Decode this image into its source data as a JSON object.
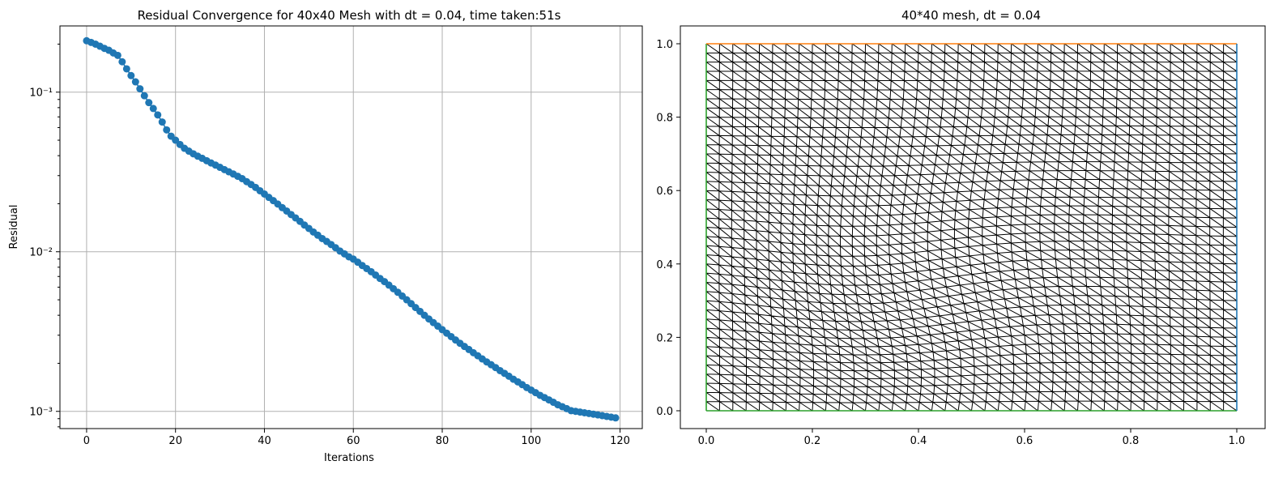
{
  "colors": {
    "series": "#1f77b4",
    "grid": "#b0b0b0",
    "mesh": "#000000",
    "bottom_edge": "#2ca02c",
    "left_edge": "#2ca02c",
    "top_edge": "#ff7f0e",
    "right_edge": "#1f77b4"
  },
  "chart_data": [
    {
      "type": "line",
      "title": "Residual Convergence for 40x40 Mesh with dt = 0.04, time taken:51s",
      "xlabel": "Iterations",
      "ylabel": "Residual",
      "yscale": "log",
      "grid": true,
      "marker": "circle",
      "xlim": [
        -6,
        125
      ],
      "ylim": [
        0.00078,
        0.26
      ],
      "x_ticks": [
        0,
        20,
        40,
        60,
        80,
        100,
        120
      ],
      "x_tick_labels": [
        "0",
        "20",
        "40",
        "60",
        "80",
        "100",
        "120"
      ],
      "y_ticks": [
        0.001,
        0.01,
        0.1
      ],
      "y_tick_labels": [
        "10⁻³",
        "10⁻²",
        "10⁻¹"
      ],
      "x": [
        0,
        1,
        2,
        3,
        4,
        5,
        6,
        7,
        8,
        9,
        10,
        11,
        12,
        13,
        14,
        15,
        16,
        17,
        18,
        19,
        20,
        21,
        22,
        23,
        24,
        25,
        26,
        27,
        28,
        29,
        30,
        31,
        32,
        33,
        34,
        35,
        36,
        37,
        38,
        39,
        40,
        41,
        42,
        43,
        44,
        45,
        46,
        47,
        48,
        49,
        50,
        51,
        52,
        53,
        54,
        55,
        56,
        57,
        58,
        59,
        60,
        61,
        62,
        63,
        64,
        65,
        66,
        67,
        68,
        69,
        70,
        71,
        72,
        73,
        74,
        75,
        76,
        77,
        78,
        79,
        80,
        81,
        82,
        83,
        84,
        85,
        86,
        87,
        88,
        89,
        90,
        91,
        92,
        93,
        94,
        95,
        96,
        97,
        98,
        99,
        100,
        101,
        102,
        103,
        104,
        105,
        106,
        107,
        108,
        109,
        110,
        111,
        112,
        113,
        114,
        115,
        116,
        117,
        118,
        119
      ],
      "series": [
        {
          "values": [
            0.21,
            0.205,
            0.2,
            0.194,
            0.188,
            0.183,
            0.176,
            0.17,
            0.155,
            0.14,
            0.127,
            0.116,
            0.105,
            0.095,
            0.086,
            0.079,
            0.072,
            0.065,
            0.058,
            0.053,
            0.05,
            0.047,
            0.0445,
            0.0427,
            0.0411,
            0.0397,
            0.0385,
            0.0372,
            0.036,
            0.0349,
            0.0338,
            0.0327,
            0.0317,
            0.0307,
            0.0297,
            0.0287,
            0.0275,
            0.0264,
            0.0253,
            0.0241,
            0.023,
            0.0219,
            0.0209,
            0.0199,
            0.0189,
            0.018,
            0.0171,
            0.0163,
            0.0155,
            0.0147,
            0.014,
            0.0133,
            0.0127,
            0.0121,
            0.0116,
            0.0111,
            0.0106,
            0.0101,
            0.0097,
            0.0093,
            0.009,
            0.0086,
            0.0082,
            0.00785,
            0.0075,
            0.00715,
            0.0068,
            0.0065,
            0.00618,
            0.00587,
            0.00557,
            0.00528,
            0.005,
            0.00473,
            0.00447,
            0.00423,
            0.004,
            0.00379,
            0.0036,
            0.00342,
            0.00325,
            0.00309,
            0.00294,
            0.0028,
            0.00267,
            0.00255,
            0.00244,
            0.00233,
            0.00223,
            0.00213,
            0.00204,
            0.00196,
            0.00188,
            0.0018,
            0.00173,
            0.00166,
            0.00159,
            0.00153,
            0.00147,
            0.00141,
            0.00136,
            0.00131,
            0.00126,
            0.00122,
            0.00118,
            0.00114,
            0.0011,
            0.00107,
            0.00104,
            0.00101,
            0.001,
            0.00099,
            0.00098,
            0.00097,
            0.00096,
            0.00095,
            0.00094,
            0.00093,
            0.00092,
            0.00091
          ]
        }
      ]
    },
    {
      "type": "mesh",
      "title": "40*40 mesh, dt = 0.04",
      "xlim": [
        0,
        1
      ],
      "ylim": [
        0,
        1
      ],
      "x_ticks": [
        0.0,
        0.2,
        0.4,
        0.6,
        0.8,
        1.0
      ],
      "x_tick_labels": [
        "0.0",
        "0.2",
        "0.4",
        "0.6",
        "0.8",
        "1.0"
      ],
      "y_ticks": [
        0.0,
        0.2,
        0.4,
        0.6,
        0.8,
        1.0
      ],
      "y_tick_labels": [
        "0.0",
        "0.2",
        "0.4",
        "0.6",
        "0.8",
        "1.0"
      ],
      "n_cells": 40,
      "element": "triangle",
      "grid": false
    }
  ]
}
